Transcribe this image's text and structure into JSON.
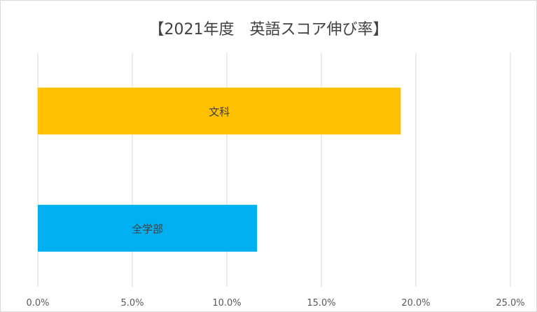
{
  "chart_data": {
    "type": "bar",
    "orientation": "horizontal",
    "title": "【2021年度　英語スコア伸び率】",
    "categories": [
      "文科",
      "全学部"
    ],
    "values": [
      19.2,
      11.6
    ],
    "bar_colors": [
      "#ffc000",
      "#00b0f0"
    ],
    "xlim": [
      0,
      25
    ],
    "xticks": [
      "0.0%",
      "5.0%",
      "10.0%",
      "15.0%",
      "20.0%",
      "25.0%"
    ],
    "grid": true,
    "data_labels": "inside-bar category name"
  }
}
